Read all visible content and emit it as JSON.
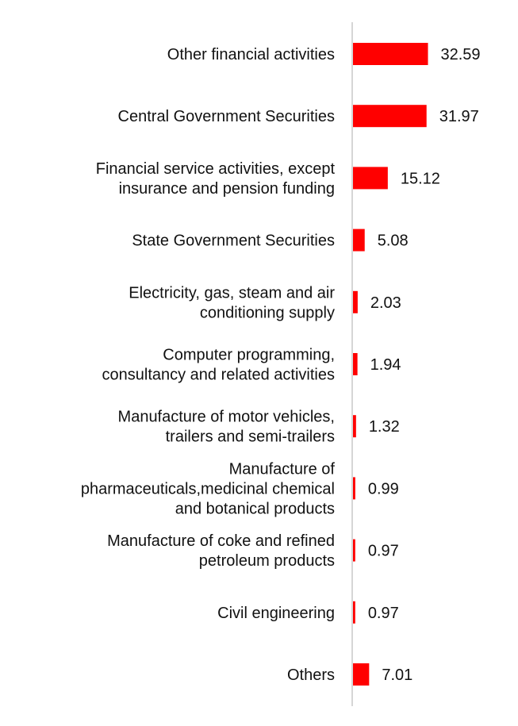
{
  "chart_data": {
    "type": "bar",
    "orientation": "horizontal",
    "title": "",
    "xlabel": "",
    "ylabel": "",
    "bar_color": "#ff0000",
    "axis_color": "#c8c8c8",
    "grid": false,
    "legend": "none",
    "xlim": [
      0,
      40
    ],
    "categories": [
      [
        "Other financial activities"
      ],
      [
        "Central Government Securities"
      ],
      [
        "Financial service activities, except",
        "insurance and pension funding"
      ],
      [
        "State Government Securities"
      ],
      [
        "Electricity, gas, steam and air",
        "conditioning supply"
      ],
      [
        "Computer programming,",
        "consultancy and related activities"
      ],
      [
        "Manufacture of motor vehicles,",
        "trailers and semi-trailers"
      ],
      [
        "Manufacture of",
        "pharmaceuticals,medicinal chemical",
        "and botanical products"
      ],
      [
        "Manufacture of coke and refined",
        "petroleum products"
      ],
      [
        "Civil engineering"
      ],
      [
        "Others"
      ]
    ],
    "values": [
      32.59,
      31.97,
      15.12,
      5.08,
      2.03,
      1.94,
      1.32,
      0.99,
      0.97,
      0.97,
      7.01
    ],
    "value_labels": [
      "32.59",
      "31.97",
      "15.12",
      "5.08",
      "2.03",
      "1.94",
      "1.32",
      "0.99",
      "0.97",
      "0.97",
      "7.01"
    ]
  }
}
